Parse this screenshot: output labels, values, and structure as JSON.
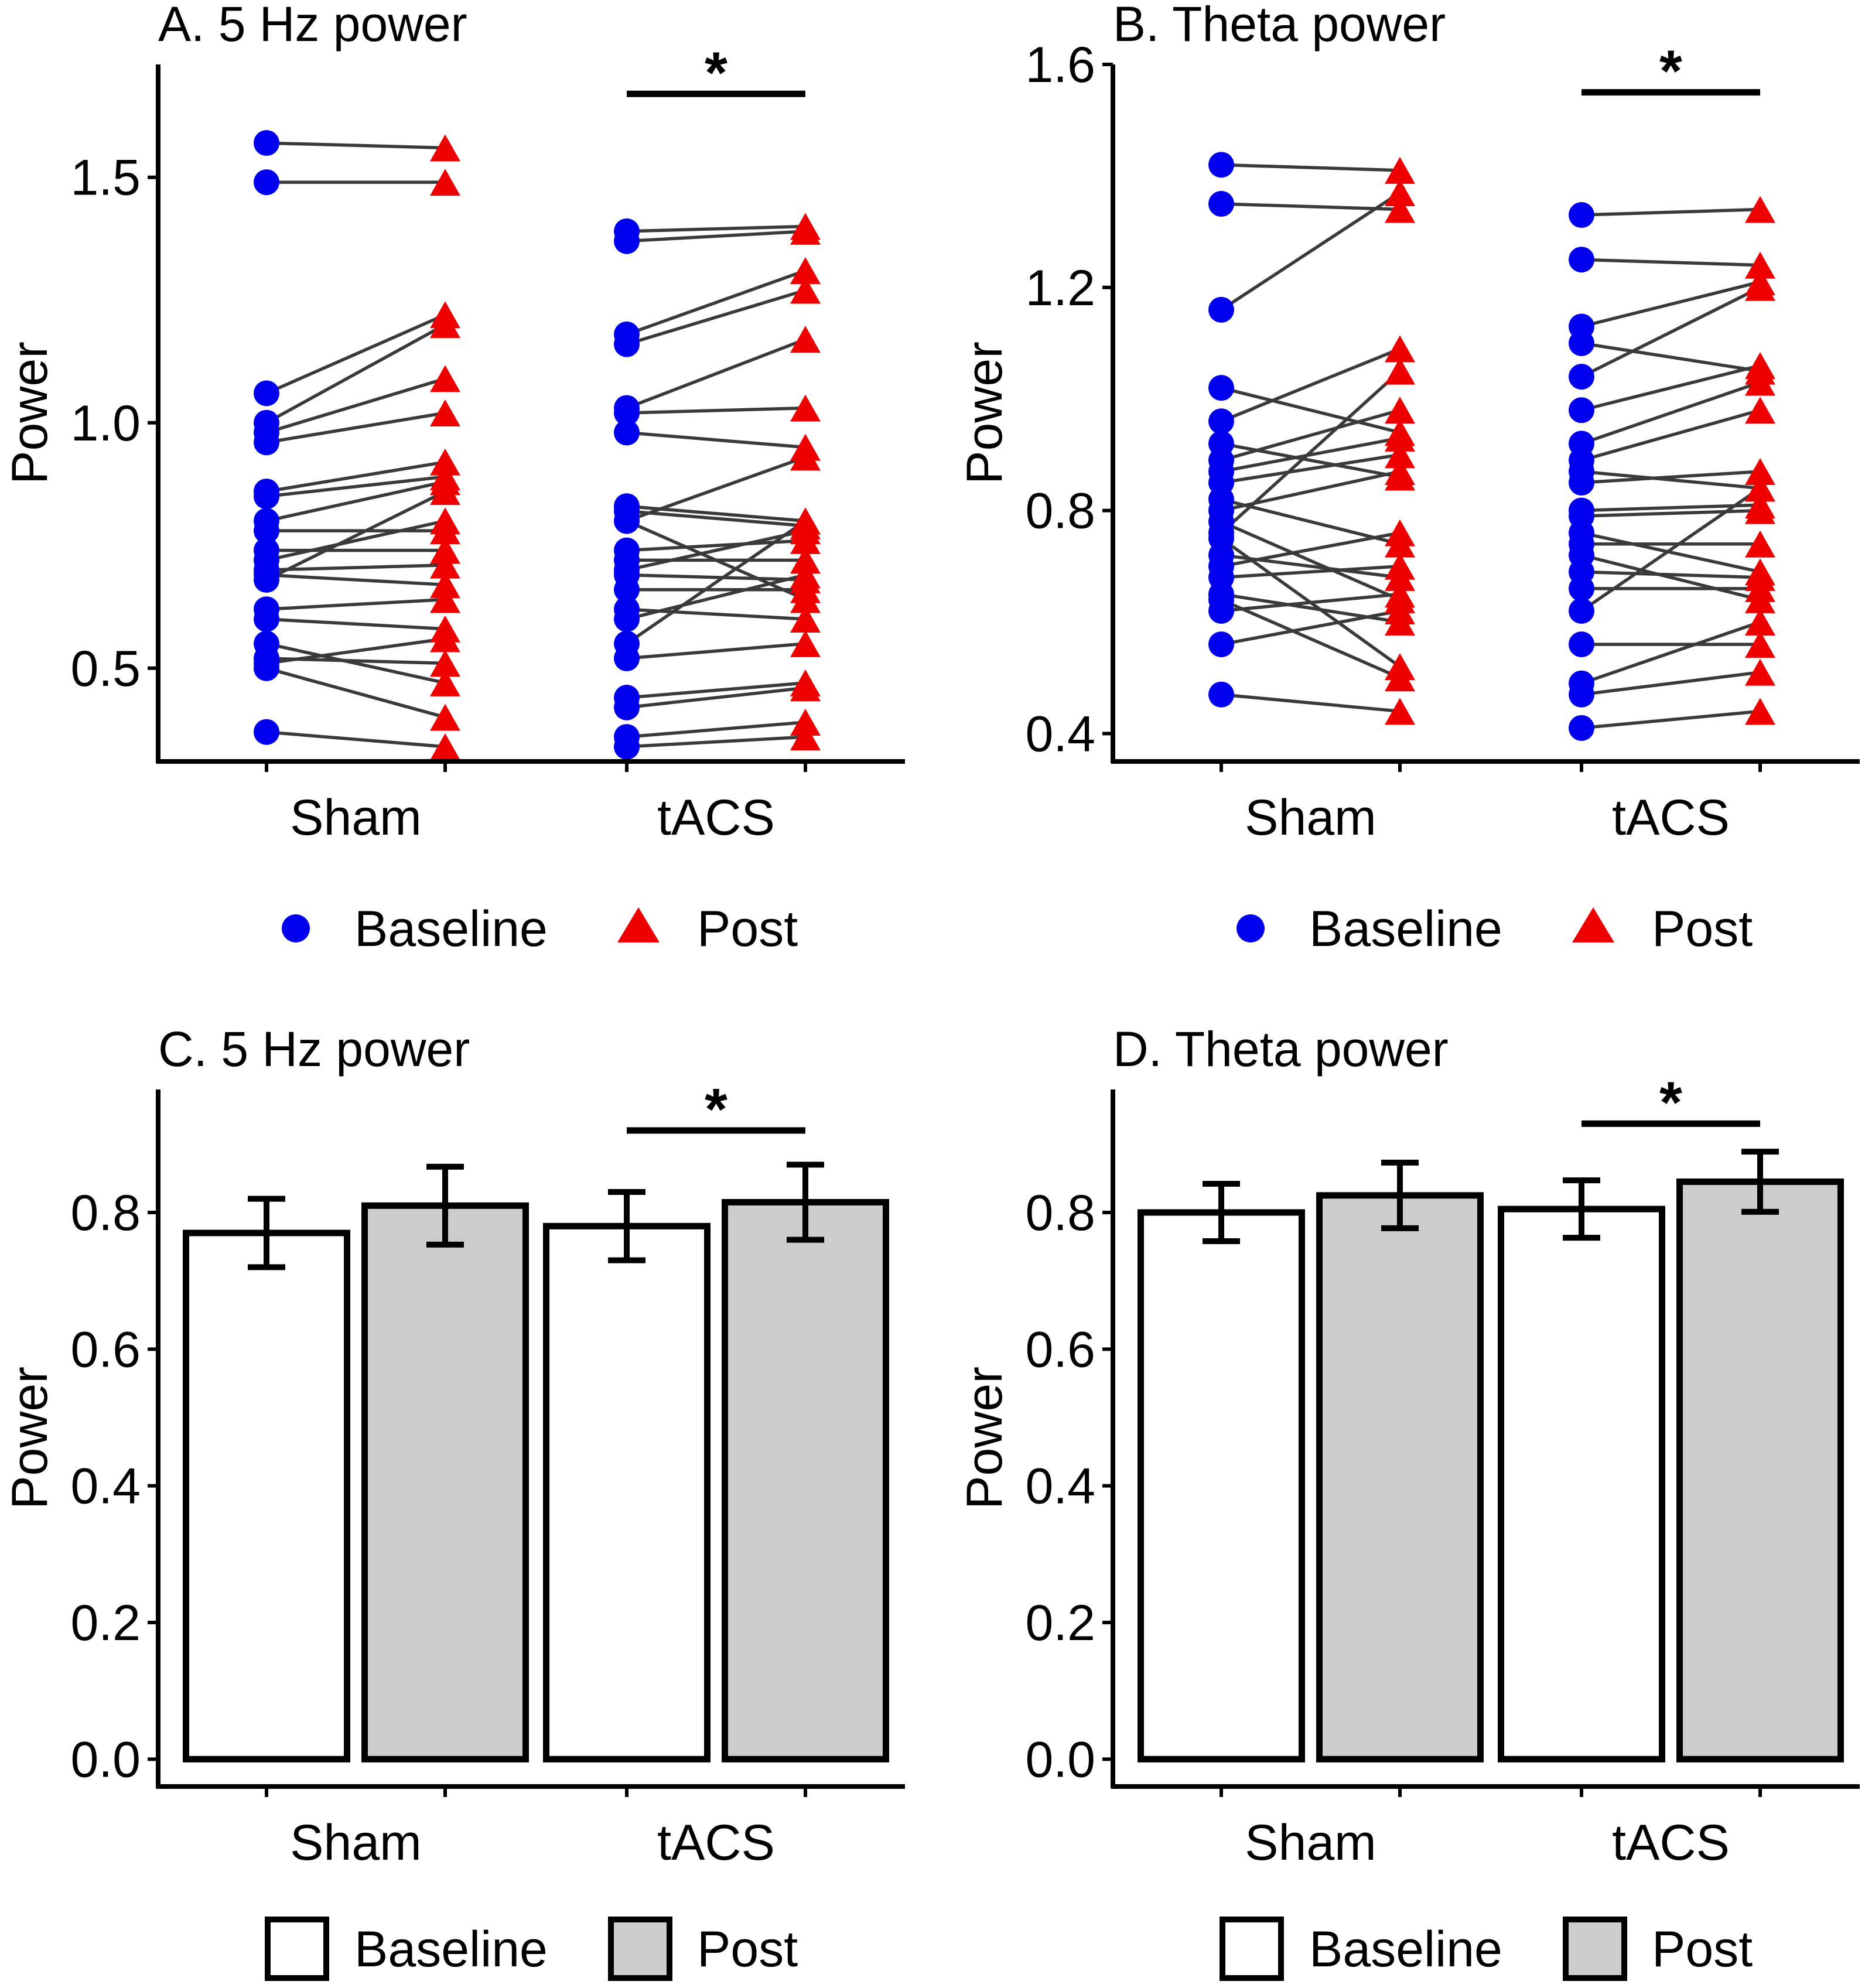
{
  "colors": {
    "baseline_point": "#0000ee",
    "post_point": "#ee0000",
    "pair_line": "#3a3a3a",
    "baseline_bar": "#ffffff",
    "post_bar": "#cccccc",
    "axis": "#000000"
  },
  "legend": {
    "baseline_label": "Baseline",
    "post_label": "Post"
  },
  "chart_data": [
    {
      "type": "scatter",
      "title": "A. 5 Hz power",
      "xlabel": "",
      "ylabel": "Power",
      "ylim": [
        0.31,
        1.73
      ],
      "yticks": [
        0.5,
        1.0,
        1.5
      ],
      "ytick_labels": [
        "0.5",
        "1.0",
        "1.5"
      ],
      "categories": [
        "Sham",
        "tACS"
      ],
      "significance": {
        "group": "tACS",
        "label": "*",
        "y": 1.67
      },
      "series": [
        {
          "group": "Sham",
          "baseline": [
            1.57,
            1.49,
            1.06,
            1.0,
            0.98,
            0.96,
            0.86,
            0.85,
            0.8,
            0.78,
            0.74,
            0.72,
            0.7,
            0.69,
            0.68,
            0.62,
            0.6,
            0.55,
            0.52,
            0.51,
            0.5,
            0.37
          ],
          "post": [
            1.56,
            1.49,
            1.22,
            1.2,
            1.09,
            1.02,
            0.92,
            0.89,
            0.88,
            0.78,
            0.74,
            0.8,
            0.71,
            0.67,
            0.86,
            0.64,
            0.58,
            0.47,
            0.51,
            0.56,
            0.4,
            0.34
          ]
        },
        {
          "group": "tACS",
          "baseline": [
            1.39,
            1.37,
            1.18,
            1.16,
            1.03,
            1.02,
            0.98,
            0.83,
            0.82,
            0.8,
            0.8,
            0.74,
            0.72,
            0.7,
            0.69,
            0.66,
            0.62,
            0.6,
            0.55,
            0.52,
            0.44,
            0.42,
            0.36,
            0.34
          ],
          "post": [
            1.4,
            1.39,
            1.31,
            1.27,
            1.17,
            1.03,
            0.95,
            0.8,
            0.79,
            0.64,
            0.93,
            0.76,
            0.72,
            0.78,
            0.68,
            0.66,
            0.6,
            0.69,
            0.8,
            0.55,
            0.47,
            0.46,
            0.39,
            0.36
          ]
        }
      ]
    },
    {
      "type": "scatter",
      "title": "B. Theta power",
      "xlabel": "",
      "ylabel": "Power",
      "ylim": [
        0.35,
        1.6
      ],
      "yticks": [
        0.4,
        0.8,
        1.2,
        1.6
      ],
      "ytick_labels": [
        "0.4",
        "0.8",
        "1.2",
        "1.6"
      ],
      "categories": [
        "Sham",
        "tACS"
      ],
      "significance": {
        "group": "tACS",
        "label": "*",
        "y": 1.55
      },
      "series": [
        {
          "group": "Sham",
          "baseline": [
            1.42,
            1.35,
            1.16,
            1.02,
            0.96,
            0.92,
            0.89,
            0.87,
            0.85,
            0.82,
            0.8,
            0.78,
            0.76,
            0.75,
            0.72,
            0.7,
            0.68,
            0.65,
            0.64,
            0.62,
            0.56,
            0.47
          ],
          "post": [
            1.41,
            1.34,
            1.37,
            0.94,
            1.09,
            0.86,
            0.98,
            0.93,
            0.9,
            0.74,
            0.87,
            0.64,
            1.05,
            0.52,
            0.68,
            0.76,
            0.7,
            0.6,
            0.5,
            0.65,
            0.62,
            0.44
          ]
        },
        {
          "group": "tACS",
          "baseline": [
            1.33,
            1.25,
            1.13,
            1.1,
            1.04,
            0.98,
            0.92,
            0.89,
            0.87,
            0.85,
            0.8,
            0.79,
            0.76,
            0.74,
            0.72,
            0.69,
            0.66,
            0.62,
            0.56,
            0.49,
            0.47,
            0.41
          ],
          "post": [
            1.34,
            1.24,
            1.21,
            1.05,
            1.2,
            1.06,
            1.03,
            0.98,
            0.84,
            0.87,
            0.81,
            0.8,
            0.69,
            0.74,
            0.64,
            0.68,
            0.66,
            0.84,
            0.56,
            0.6,
            0.51,
            0.44
          ]
        }
      ]
    },
    {
      "type": "bar",
      "title": "C. 5 Hz power",
      "xlabel": "",
      "ylabel": "Power",
      "ylim": [
        -0.04,
        0.98
      ],
      "yticks": [
        0.0,
        0.2,
        0.4,
        0.6,
        0.8
      ],
      "ytick_labels": [
        "0.0",
        "0.2",
        "0.4",
        "0.6",
        "0.8"
      ],
      "categories": [
        "Sham",
        "tACS"
      ],
      "significance": {
        "group": "tACS",
        "label": "*",
        "y": 0.92
      },
      "series": [
        {
          "name": "Baseline",
          "values": [
            0.77,
            0.78
          ],
          "error": [
            0.05,
            0.05
          ]
        },
        {
          "name": "Post",
          "values": [
            0.81,
            0.815
          ],
          "error": [
            0.057,
            0.055
          ]
        }
      ]
    },
    {
      "type": "bar",
      "title": "D. Theta power",
      "xlabel": "",
      "ylabel": "Power",
      "ylim": [
        -0.04,
        0.98
      ],
      "yticks": [
        0.0,
        0.2,
        0.4,
        0.6,
        0.8
      ],
      "ytick_labels": [
        "0.0",
        "0.2",
        "0.4",
        "0.6",
        "0.8"
      ],
      "categories": [
        "Sham",
        "tACS"
      ],
      "significance": {
        "group": "tACS",
        "label": "*",
        "y": 0.93
      },
      "series": [
        {
          "name": "Baseline",
          "values": [
            0.8,
            0.805
          ],
          "error": [
            0.042,
            0.042
          ]
        },
        {
          "name": "Post",
          "values": [
            0.825,
            0.845
          ],
          "error": [
            0.048,
            0.044
          ]
        }
      ]
    }
  ]
}
